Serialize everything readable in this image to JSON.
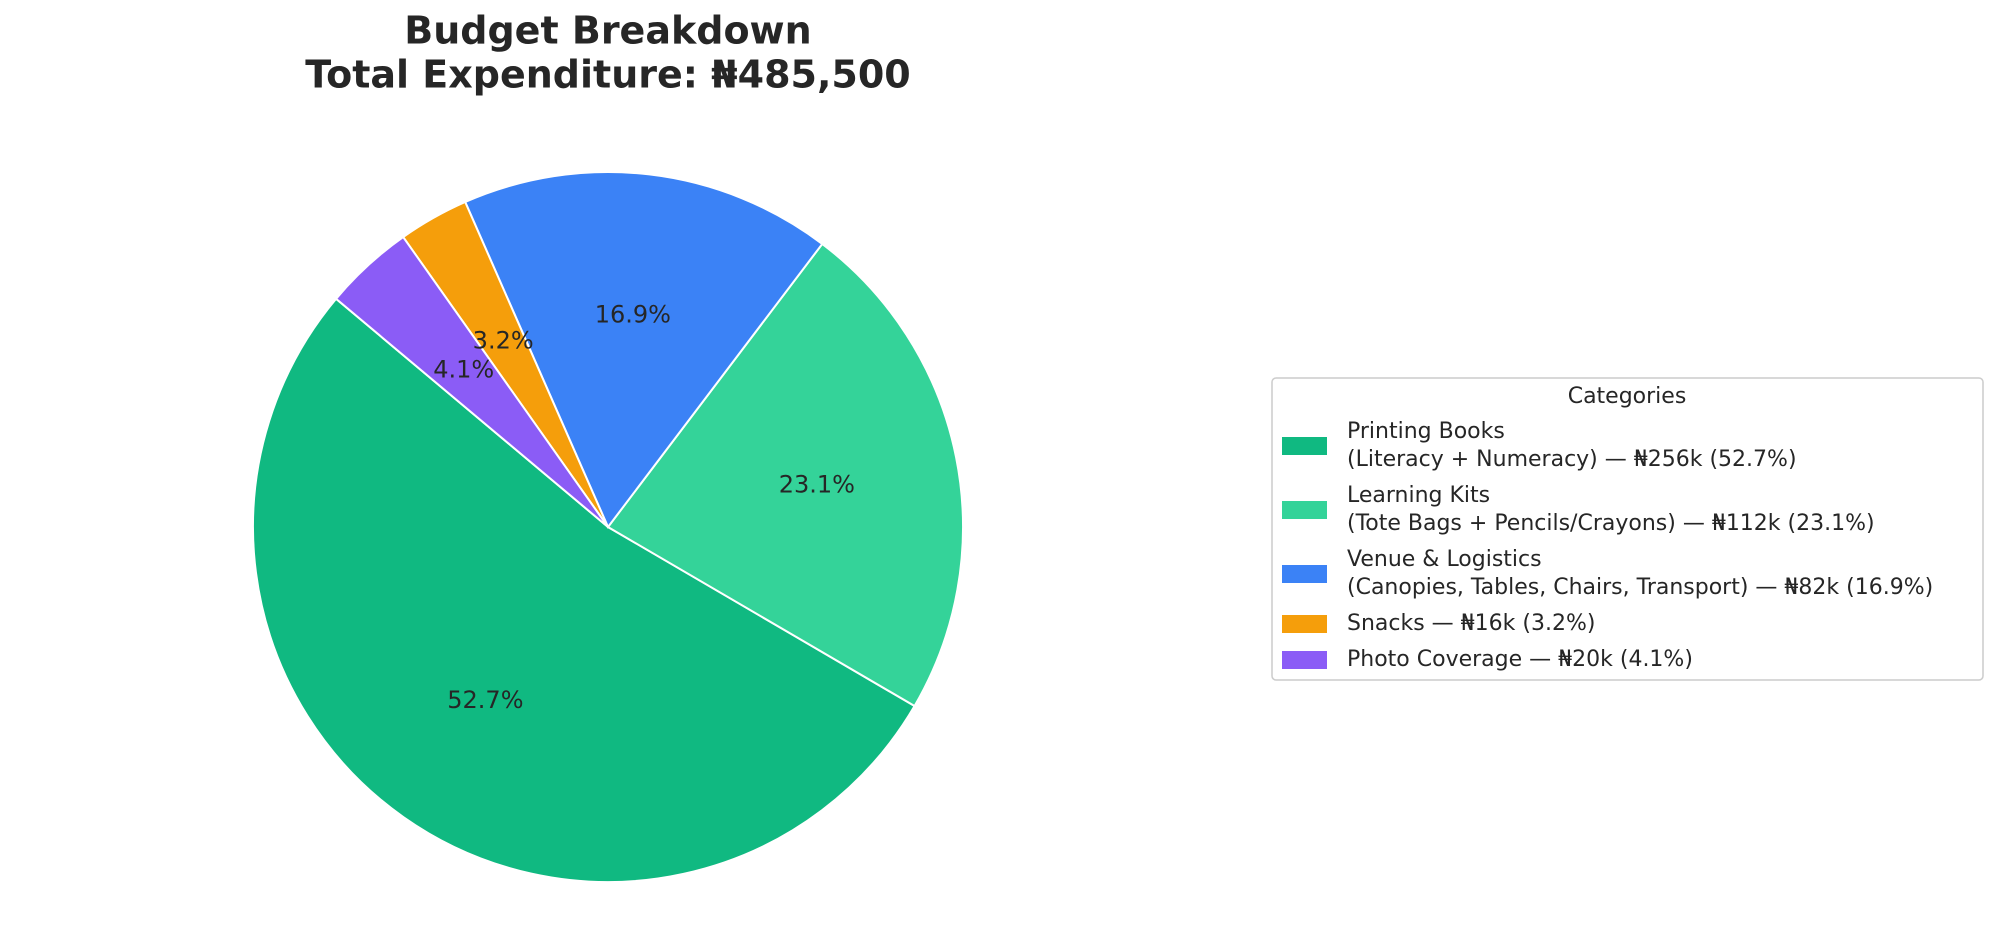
{
  "chart_data": {
    "type": "pie",
    "title": [
      "Budget Breakdown",
      "Total Expenditure: ₦485,500"
    ],
    "categories": [
      [
        "Printing Books",
        "(Literacy + Numeracy) — ₦256k (52.7%)"
      ],
      [
        "Learning Kits",
        "(Tote Bags + Pencils/Crayons) — ₦112k (23.1%)"
      ],
      [
        "Venue & Logistics",
        "(Canopies, Tables, Chairs, Transport) — ₦82k (16.9%)"
      ],
      [
        "Snacks — ₦16k (3.2%)"
      ],
      [
        "Photo Coverage — ₦20k (4.1%)"
      ]
    ],
    "values": [
      52.7,
      23.1,
      16.9,
      3.2,
      4.1
    ],
    "value_labels": [
      "52.7%",
      "23.1%",
      "16.9%",
      "3.2%",
      "4.1%"
    ],
    "colors": [
      "#10b981",
      "#34d399",
      "#3b82f6",
      "#f59e0b",
      "#8b5cf6"
    ],
    "start_angle": 140,
    "legend_title": "Categories",
    "legend": "right"
  }
}
